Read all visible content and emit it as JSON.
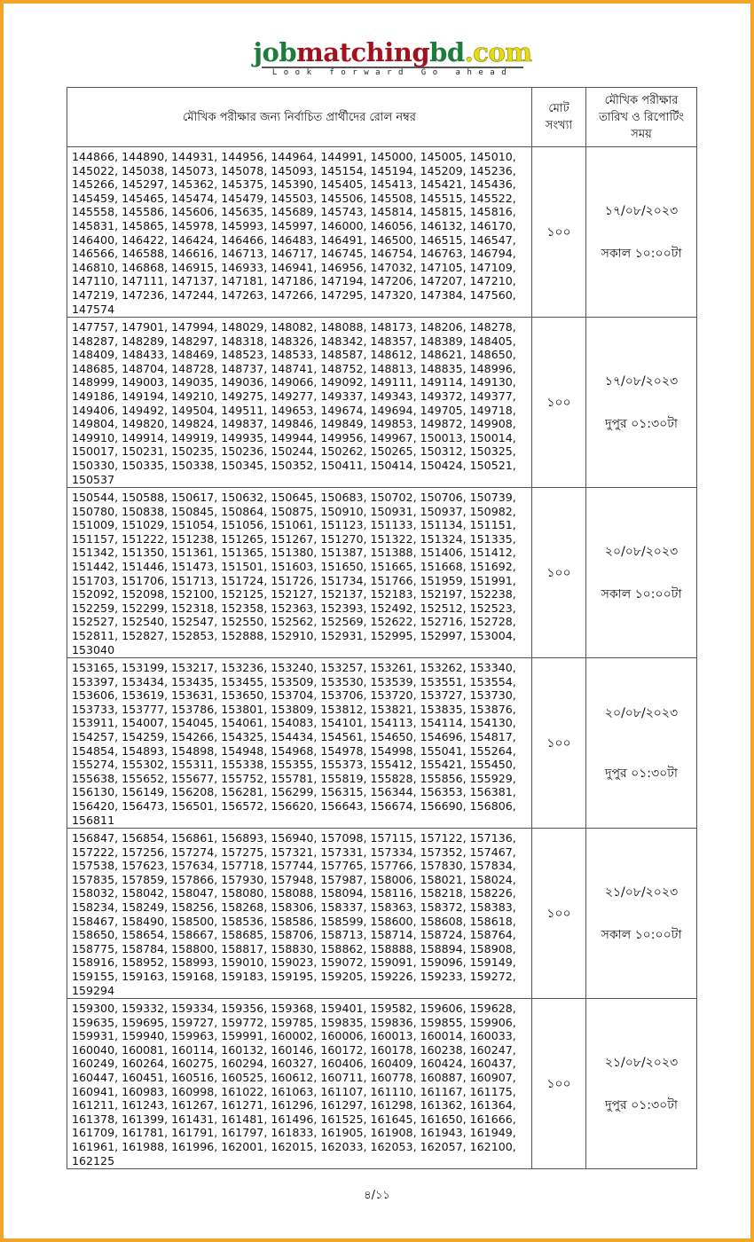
{
  "logo": {
    "part1": "job",
    "part2": "matching",
    "part3": "bd",
    "part4": ".com",
    "tagline": "Look forward Go ahead",
    "colors": {
      "green": "#1e7d3a",
      "red": "#a3121c",
      "yellow": "#e6dd10"
    }
  },
  "frame_color": "#f3a52b",
  "table": {
    "headers": [
      "মৌখিক পরীক্ষার জন্য নির্বাচিত প্রার্থীদের রোল নম্বর",
      "মোট সংখ্যা",
      "মৌখিক পরীক্ষার তারিখ ও রিপোর্টিং সময়"
    ],
    "rows": [
      {
        "count": "১০০",
        "date": "১৭/০৮/২০২৩",
        "time": "সকাল ১০:০০টা",
        "rolls": [
          144866,
          144890,
          144931,
          144956,
          144964,
          144991,
          145000,
          145005,
          145010,
          145022,
          145038,
          145073,
          145078,
          145093,
          145154,
          145194,
          145209,
          145236,
          145266,
          145297,
          145362,
          145375,
          145390,
          145405,
          145413,
          145421,
          145436,
          145459,
          145465,
          145474,
          145479,
          145503,
          145506,
          145508,
          145515,
          145522,
          145558,
          145586,
          145606,
          145635,
          145689,
          145743,
          145814,
          145815,
          145816,
          145831,
          145865,
          145978,
          145993,
          145997,
          146000,
          146056,
          146132,
          146170,
          146400,
          146422,
          146424,
          146466,
          146483,
          146491,
          146500,
          146515,
          146547,
          146566,
          146588,
          146616,
          146713,
          146717,
          146745,
          146754,
          146763,
          146794,
          146810,
          146868,
          146915,
          146933,
          146941,
          146956,
          147032,
          147105,
          147109,
          147110,
          147111,
          147137,
          147181,
          147186,
          147194,
          147206,
          147207,
          147210,
          147219,
          147236,
          147244,
          147263,
          147266,
          147295,
          147320,
          147384,
          147560,
          147574
        ]
      },
      {
        "count": "১০০",
        "date": "১৭/০৮/২০২৩",
        "time": "দুপুর ০১:৩০টা",
        "rolls": [
          147757,
          147901,
          147994,
          148029,
          148082,
          148088,
          148173,
          148206,
          148278,
          148287,
          148289,
          148297,
          148318,
          148326,
          148342,
          148357,
          148389,
          148405,
          148409,
          148433,
          148469,
          148523,
          148533,
          148587,
          148612,
          148621,
          148650,
          148685,
          148704,
          148728,
          148737,
          148741,
          148752,
          148813,
          148835,
          148996,
          148999,
          149003,
          149035,
          149036,
          149066,
          149092,
          149111,
          149114,
          149130,
          149186,
          149194,
          149210,
          149275,
          149277,
          149337,
          149343,
          149372,
          149377,
          149406,
          149492,
          149504,
          149511,
          149653,
          149674,
          149694,
          149705,
          149718,
          149804,
          149820,
          149824,
          149837,
          149846,
          149849,
          149853,
          149872,
          149908,
          149910,
          149914,
          149919,
          149935,
          149944,
          149956,
          149967,
          150013,
          150014,
          150017,
          150231,
          150235,
          150236,
          150244,
          150262,
          150265,
          150312,
          150325,
          150330,
          150335,
          150338,
          150345,
          150352,
          150411,
          150414,
          150424,
          150521,
          150537
        ]
      },
      {
        "count": "১০০",
        "date": "২০/০৮/২০২৩",
        "time": "সকাল ১০:০০টা",
        "rolls": [
          150544,
          150588,
          150617,
          150632,
          150645,
          150683,
          150702,
          150706,
          150739,
          150780,
          150838,
          150845,
          150864,
          150875,
          150910,
          150931,
          150937,
          150982,
          151009,
          151029,
          151054,
          151056,
          151061,
          151123,
          151133,
          151134,
          151151,
          151157,
          151222,
          151238,
          151265,
          151267,
          151270,
          151322,
          151324,
          151335,
          151342,
          151350,
          151361,
          151365,
          151380,
          151387,
          151388,
          151406,
          151412,
          151442,
          151446,
          151473,
          151501,
          151603,
          151650,
          151665,
          151668,
          151692,
          151703,
          151706,
          151713,
          151724,
          151726,
          151734,
          151766,
          151959,
          151991,
          152092,
          152098,
          152100,
          152125,
          152127,
          152137,
          152183,
          152197,
          152238,
          152259,
          152299,
          152318,
          152358,
          152363,
          152393,
          152492,
          152512,
          152523,
          152527,
          152540,
          152547,
          152550,
          152562,
          152569,
          152622,
          152716,
          152728,
          152811,
          152827,
          152853,
          152888,
          152910,
          152931,
          152995,
          152997,
          153004,
          153040
        ]
      },
      {
        "count": "১০০",
        "date": "২০/০৮/২০২৩",
        "time": "দুপুর ০১:৩০টা",
        "rolls": [
          153165,
          153199,
          153217,
          153236,
          153240,
          153257,
          153261,
          153262,
          153340,
          153397,
          153434,
          153435,
          153455,
          153509,
          153530,
          153539,
          153551,
          153554,
          153606,
          153619,
          153631,
          153650,
          153704,
          153706,
          153720,
          153727,
          153730,
          153733,
          153777,
          153786,
          153801,
          153809,
          153812,
          153821,
          153835,
          153876,
          153911,
          154007,
          154045,
          154061,
          154083,
          154101,
          154113,
          154114,
          154130,
          154257,
          154259,
          154266,
          154325,
          154434,
          154561,
          154650,
          154696,
          154817,
          154854,
          154893,
          154898,
          154948,
          154968,
          154978,
          154998,
          155041,
          155264,
          155274,
          155302,
          155311,
          155338,
          155355,
          155373,
          155412,
          155421,
          155450,
          155638,
          155652,
          155677,
          155752,
          155781,
          155819,
          155828,
          155856,
          155929,
          156130,
          156149,
          156208,
          156281,
          156299,
          156315,
          156344,
          156353,
          156381,
          156420,
          156473,
          156501,
          156572,
          156620,
          156643,
          156674,
          156690,
          156806,
          156811
        ]
      },
      {
        "count": "১০০",
        "date": "২১/০৮/২০২৩",
        "time": "সকাল ১০:০০টা",
        "rolls": [
          156847,
          156854,
          156861,
          156893,
          156940,
          157098,
          157115,
          157122,
          157136,
          157222,
          157256,
          157274,
          157275,
          157321,
          157331,
          157334,
          157352,
          157467,
          157538,
          157623,
          157634,
          157718,
          157744,
          157765,
          157766,
          157830,
          157834,
          157835,
          157859,
          157866,
          157930,
          157948,
          157987,
          158006,
          158021,
          158024,
          158032,
          158042,
          158047,
          158080,
          158088,
          158094,
          158116,
          158218,
          158226,
          158234,
          158249,
          158256,
          158268,
          158306,
          158337,
          158363,
          158372,
          158383,
          158467,
          158490,
          158500,
          158536,
          158586,
          158599,
          158600,
          158608,
          158618,
          158650,
          158654,
          158667,
          158685,
          158706,
          158713,
          158714,
          158724,
          158764,
          158775,
          158784,
          158800,
          158817,
          158830,
          158862,
          158888,
          158894,
          158908,
          158916,
          158952,
          158993,
          159010,
          159023,
          159072,
          159091,
          159096,
          159149,
          159155,
          159163,
          159168,
          159183,
          159195,
          159205,
          159226,
          159233,
          159272,
          159294
        ]
      },
      {
        "count": "১০০",
        "date": "২১/০৮/২০২৩",
        "time": "দুপুর ০১:৩০টা",
        "rolls": [
          159300,
          159332,
          159334,
          159356,
          159368,
          159401,
          159582,
          159606,
          159628,
          159635,
          159695,
          159727,
          159772,
          159785,
          159835,
          159836,
          159855,
          159906,
          159931,
          159940,
          159963,
          159991,
          160002,
          160006,
          160013,
          160014,
          160033,
          160040,
          160081,
          160114,
          160132,
          160146,
          160172,
          160178,
          160238,
          160247,
          160249,
          160264,
          160275,
          160294,
          160327,
          160406,
          160409,
          160424,
          160437,
          160447,
          160451,
          160516,
          160525,
          160612,
          160711,
          160778,
          160887,
          160907,
          160941,
          160983,
          160998,
          161022,
          161063,
          161107,
          161110,
          161167,
          161175,
          161211,
          161243,
          161267,
          161271,
          161296,
          161297,
          161298,
          161362,
          161364,
          161378,
          161399,
          161431,
          161481,
          161496,
          161525,
          161645,
          161650,
          161666,
          161709,
          161781,
          161791,
          161797,
          161833,
          161905,
          161908,
          161943,
          161949,
          161961,
          161988,
          161996,
          162001,
          162015,
          162033,
          162053,
          162057,
          162100,
          162125
        ]
      }
    ]
  },
  "footer": {
    "page": "৪/১১"
  }
}
